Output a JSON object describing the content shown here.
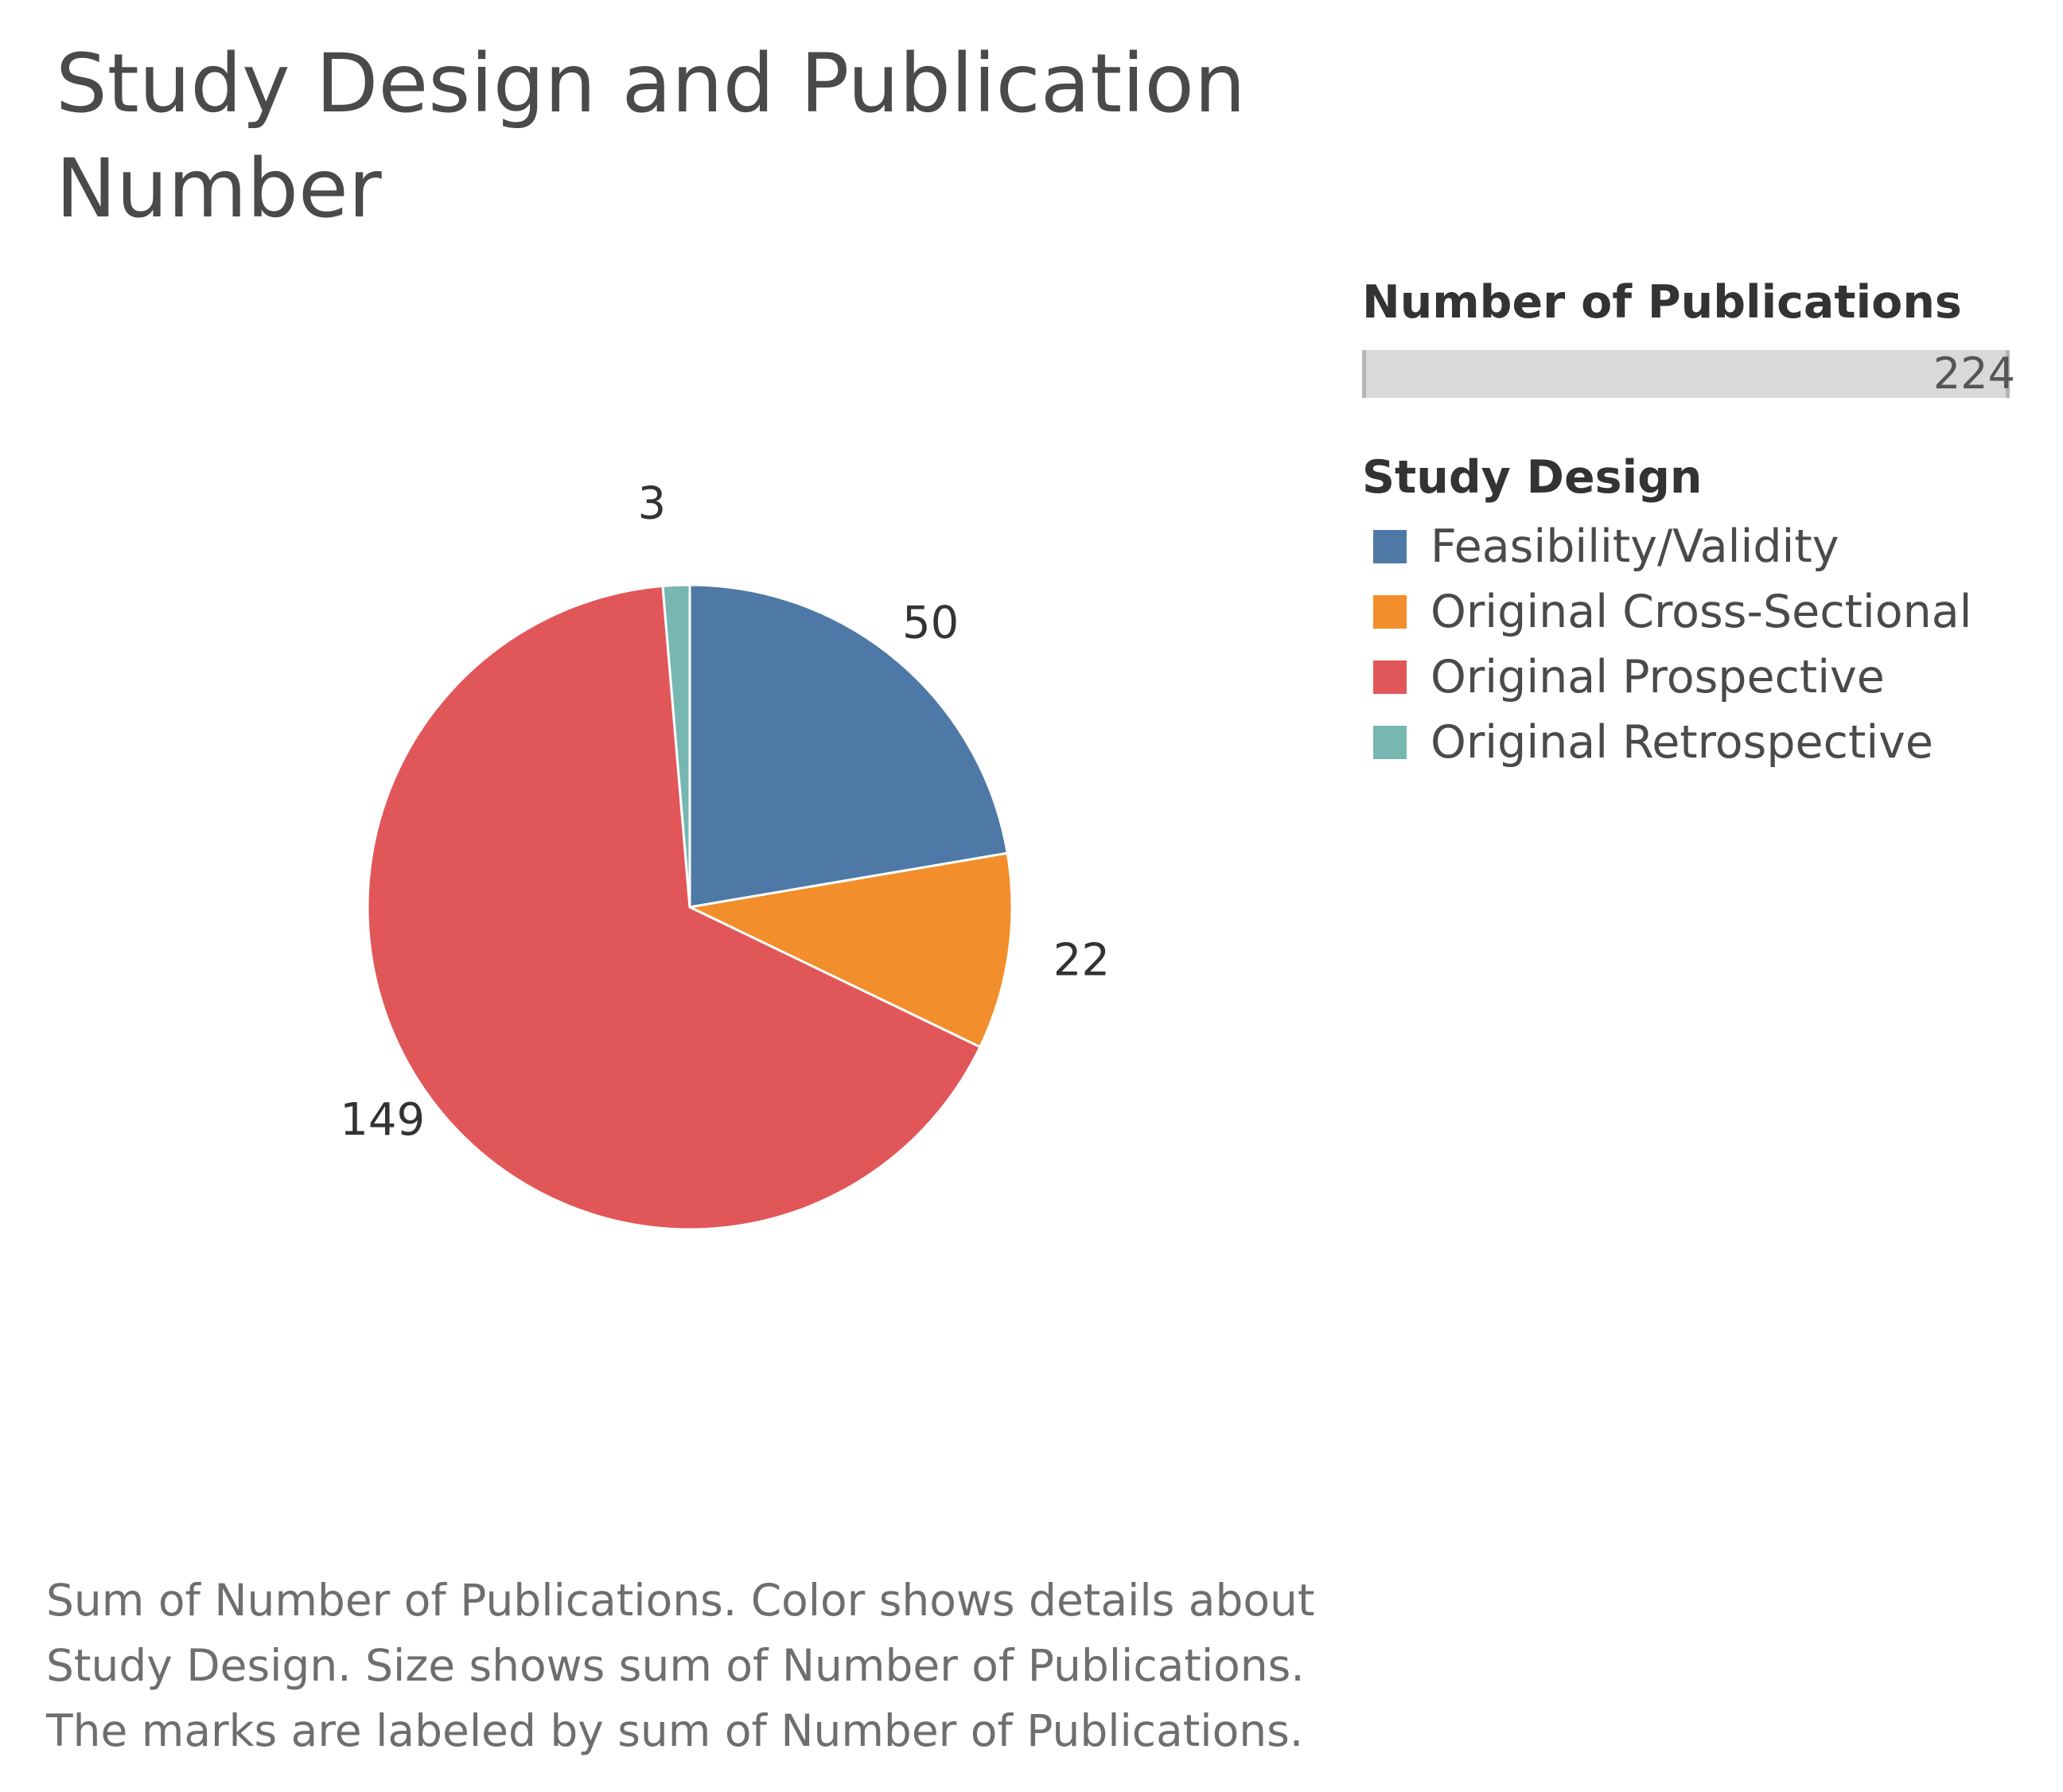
{
  "title": "Study Design and Publication Number",
  "legend": {
    "size_title": "Number of Publications",
    "size_max_label": "224",
    "color_title": "Study Design"
  },
  "caption": "Sum of Number of Publications.  Color shows details about\nStudy Design.  Size shows sum of Number of Publications.\nThe marks are labeled by sum of Number of Publications.",
  "chart_data": {
    "type": "pie",
    "title": "Study Design and Publication Number",
    "legend_placement": "top-right",
    "slices": [
      {
        "name": "Feasibility/Validity",
        "value": 50,
        "label": "50",
        "color": "#4e79a7"
      },
      {
        "name": "Original Cross-Sectional",
        "value": 22,
        "label": "22",
        "color": "#f28e2b"
      },
      {
        "name": "Original Prospective",
        "value": 149,
        "label": "149",
        "color": "#e15759"
      },
      {
        "name": "Original Retrospective",
        "value": 3,
        "label": "3",
        "color": "#76b7b2"
      }
    ]
  }
}
